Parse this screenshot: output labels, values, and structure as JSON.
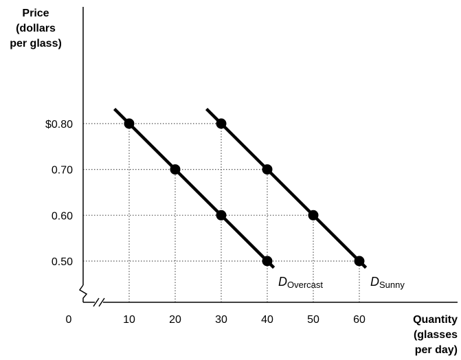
{
  "chart_data": {
    "type": "line",
    "ylabel": [
      "Price",
      "(dollars",
      "per glass)"
    ],
    "xlabel": [
      "Quantity",
      "(glasses",
      "per day)"
    ],
    "origin_label": "0",
    "x_ticks": [
      "10",
      "20",
      "30",
      "40",
      "50",
      "60"
    ],
    "x_tick_values": [
      10,
      20,
      30,
      40,
      50,
      60
    ],
    "y_ticks": [
      "$0.80",
      "0.70",
      "0.60",
      "0.50"
    ],
    "y_tick_values": [
      0.8,
      0.7,
      0.6,
      0.5
    ],
    "axis_breaks": true,
    "grid": "dotted guides to points",
    "series": [
      {
        "name_main": "D",
        "name_sub": "Overcast",
        "points": [
          {
            "x": 10,
            "y": 0.8
          },
          {
            "x": 20,
            "y": 0.7
          },
          {
            "x": 30,
            "y": 0.6
          },
          {
            "x": 40,
            "y": 0.5
          }
        ]
      },
      {
        "name_main": "D",
        "name_sub": "Sunny",
        "points": [
          {
            "x": 30,
            "y": 0.8
          },
          {
            "x": 40,
            "y": 0.7
          },
          {
            "x": 50,
            "y": 0.6
          },
          {
            "x": 60,
            "y": 0.5
          }
        ]
      }
    ],
    "colors": {
      "line": "#000000",
      "guide": "#555555"
    }
  }
}
